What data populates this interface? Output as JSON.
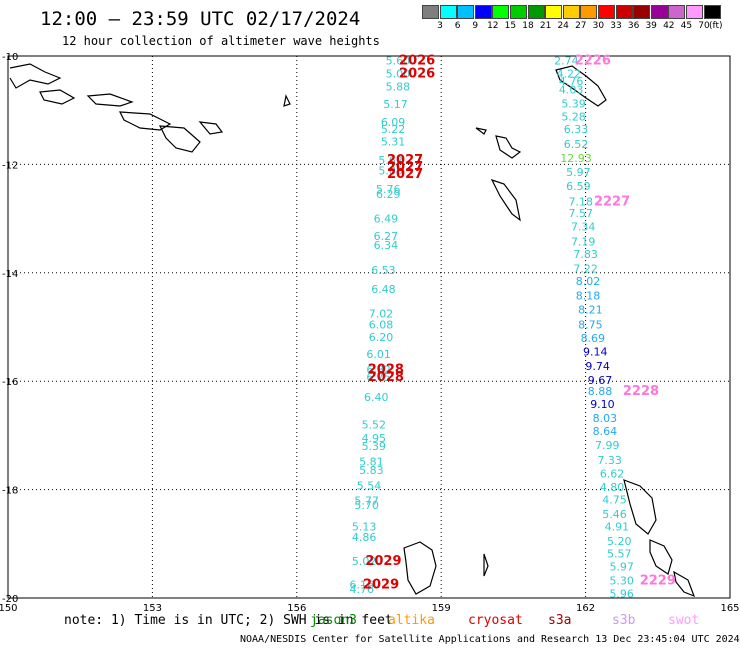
{
  "header": {
    "title": "12:00 – 23:59 UTC 02/17/2024",
    "subtitle": "12 hour collection of altimeter wave heights"
  },
  "colorbar": {
    "unit": "(ft)",
    "bins": [
      {
        "label": "3",
        "color": "#7f7f7f"
      },
      {
        "label": "6",
        "color": "#00ffff"
      },
      {
        "label": "9",
        "color": "#00bfff"
      },
      {
        "label": "12",
        "color": "#0000ff"
      },
      {
        "label": "15",
        "color": "#00ff00"
      },
      {
        "label": "18",
        "color": "#00cc00"
      },
      {
        "label": "21",
        "color": "#009900"
      },
      {
        "label": "24",
        "color": "#ffff00"
      },
      {
        "label": "27",
        "color": "#ffcc00"
      },
      {
        "label": "30",
        "color": "#ff9900"
      },
      {
        "label": "33",
        "color": "#ff0000"
      },
      {
        "label": "36",
        "color": "#cc0000"
      },
      {
        "label": "39",
        "color": "#990000"
      },
      {
        "label": "42",
        "color": "#990099"
      },
      {
        "label": "45",
        "color": "#cc66cc"
      },
      {
        "label": "70",
        "color": "#ff99ff"
      },
      {
        "label": "",
        "color": "#000000"
      }
    ]
  },
  "axes": {
    "lon_ticks": [
      "150",
      "153",
      "156",
      "159",
      "162",
      "165"
    ],
    "lat_ticks": [
      "-10",
      "-12",
      "-14",
      "-16",
      "-18",
      "-20"
    ],
    "lon_range": [
      150,
      165
    ],
    "lat_range": [
      -10,
      -20
    ]
  },
  "colors": {
    "low": "#33cccc",
    "mid": "#22aaee",
    "high": "#0000cc",
    "pass_red": "#dd0000",
    "pass_pink": "#ff77dd",
    "green": "#66dd33"
  },
  "track_a": [
    {
      "lon": 158.1,
      "lat": -10.08,
      "v": "5.60",
      "c": "low"
    },
    {
      "lon": 158.1,
      "lat": -10.32,
      "v": "5.00",
      "c": "low"
    },
    {
      "lon": 158.1,
      "lat": -10.56,
      "v": "5.88",
      "c": "low"
    },
    {
      "lon": 158.05,
      "lat": -10.89,
      "v": "5.17",
      "c": "low"
    },
    {
      "lon": 158.0,
      "lat": -11.22,
      "v": "6.09",
      "c": "low"
    },
    {
      "lon": 158.0,
      "lat": -11.35,
      "v": "5.22",
      "c": "low"
    },
    {
      "lon": 158.0,
      "lat": -11.58,
      "v": "5.31",
      "c": "low"
    },
    {
      "lon": 157.95,
      "lat": -11.92,
      "v": "5.62",
      "c": "low"
    },
    {
      "lon": 157.95,
      "lat": -12.11,
      "v": "5.86",
      "c": "low"
    },
    {
      "lon": 157.9,
      "lat": -12.45,
      "v": "5.76",
      "c": "low"
    },
    {
      "lon": 157.9,
      "lat": -12.55,
      "v": "6.29",
      "c": "low"
    },
    {
      "lon": 157.85,
      "lat": -13.0,
      "v": "6.49",
      "c": "low"
    },
    {
      "lon": 157.85,
      "lat": -13.32,
      "v": "6.27",
      "c": "low"
    },
    {
      "lon": 157.85,
      "lat": -13.49,
      "v": "6.34",
      "c": "low"
    },
    {
      "lon": 157.8,
      "lat": -13.95,
      "v": "6.53",
      "c": "low"
    },
    {
      "lon": 157.8,
      "lat": -14.3,
      "v": "6.48",
      "c": "low"
    },
    {
      "lon": 157.75,
      "lat": -14.75,
      "v": "7.02",
      "c": "low"
    },
    {
      "lon": 157.75,
      "lat": -14.95,
      "v": "6.08",
      "c": "low"
    },
    {
      "lon": 157.75,
      "lat": -15.18,
      "v": "6.20",
      "c": "low"
    },
    {
      "lon": 157.7,
      "lat": -15.5,
      "v": "6.01",
      "c": "low"
    },
    {
      "lon": 157.7,
      "lat": -15.78,
      "v": "6.82",
      "c": "low"
    },
    {
      "lon": 157.7,
      "lat": -15.92,
      "v": "6.75",
      "c": "low"
    },
    {
      "lon": 157.65,
      "lat": -16.29,
      "v": "6.40",
      "c": "low"
    },
    {
      "lon": 157.6,
      "lat": -16.8,
      "v": "5.52",
      "c": "low"
    },
    {
      "lon": 157.6,
      "lat": -17.05,
      "v": "4.95",
      "c": "low"
    },
    {
      "lon": 157.6,
      "lat": -17.2,
      "v": "5.39",
      "c": "low"
    },
    {
      "lon": 157.55,
      "lat": -17.48,
      "v": "5.81",
      "c": "low"
    },
    {
      "lon": 157.55,
      "lat": -17.64,
      "v": "5.83",
      "c": "low"
    },
    {
      "lon": 157.5,
      "lat": -17.92,
      "v": "5.54",
      "c": "low"
    },
    {
      "lon": 157.45,
      "lat": -18.2,
      "v": "5.77",
      "c": "low"
    },
    {
      "lon": 157.45,
      "lat": -18.28,
      "v": "5.70",
      "c": "low"
    },
    {
      "lon": 157.4,
      "lat": -18.68,
      "v": "5.13",
      "c": "low"
    },
    {
      "lon": 157.4,
      "lat": -18.87,
      "v": "4.86",
      "c": "low"
    },
    {
      "lon": 157.4,
      "lat": -19.32,
      "v": "5.02",
      "c": "low"
    },
    {
      "lon": 157.35,
      "lat": -19.75,
      "v": "6.16",
      "c": "low"
    },
    {
      "lon": 157.35,
      "lat": -19.83,
      "v": "4.76",
      "c": "low"
    }
  ],
  "track_a_passes": [
    {
      "lon": 158.5,
      "lat": -10.08,
      "v": "2026",
      "c": "pass_red"
    },
    {
      "lon": 158.5,
      "lat": -10.32,
      "v": "2026",
      "c": "pass_red"
    },
    {
      "lon": 158.25,
      "lat": -11.92,
      "v": "2027",
      "c": "pass_red"
    },
    {
      "lon": 158.25,
      "lat": -12.05,
      "v": "2027",
      "c": "pass_red"
    },
    {
      "lon": 158.25,
      "lat": -12.18,
      "v": "2027",
      "c": "pass_red"
    },
    {
      "lon": 157.85,
      "lat": -15.78,
      "v": "2028",
      "c": "pass_red"
    },
    {
      "lon": 157.85,
      "lat": -15.92,
      "v": "2028",
      "c": "pass_red"
    },
    {
      "lon": 157.8,
      "lat": -19.32,
      "v": "2029",
      "c": "pass_red"
    },
    {
      "lon": 157.75,
      "lat": -19.75,
      "v": "2029",
      "c": "pass_red"
    }
  ],
  "track_b": [
    {
      "lon": 161.6,
      "lat": -10.08,
      "v": "2.74",
      "c": "low"
    },
    {
      "lon": 161.65,
      "lat": -10.32,
      "v": "4.22",
      "c": "low"
    },
    {
      "lon": 161.7,
      "lat": -10.46,
      "v": "4.76",
      "c": "low"
    },
    {
      "lon": 161.7,
      "lat": -10.62,
      "v": "4.03",
      "c": "low"
    },
    {
      "lon": 161.75,
      "lat": -10.88,
      "v": "5.39",
      "c": "low"
    },
    {
      "lon": 161.75,
      "lat": -11.12,
      "v": "5.28",
      "c": "low"
    },
    {
      "lon": 161.8,
      "lat": -11.35,
      "v": "6.33",
      "c": "low"
    },
    {
      "lon": 161.8,
      "lat": -11.62,
      "v": "6.52",
      "c": "low"
    },
    {
      "lon": 161.8,
      "lat": -11.88,
      "v": "12.93",
      "c": "green"
    },
    {
      "lon": 161.85,
      "lat": -12.14,
      "v": "5.97",
      "c": "low"
    },
    {
      "lon": 161.85,
      "lat": -12.4,
      "v": "6.59",
      "c": "low"
    },
    {
      "lon": 161.9,
      "lat": -12.68,
      "v": "7.18",
      "c": "low"
    },
    {
      "lon": 161.9,
      "lat": -12.9,
      "v": "7.57",
      "c": "low"
    },
    {
      "lon": 161.95,
      "lat": -13.15,
      "v": "7.34",
      "c": "low"
    },
    {
      "lon": 161.95,
      "lat": -13.42,
      "v": "7.19",
      "c": "low"
    },
    {
      "lon": 162.0,
      "lat": -13.65,
      "v": "7.83",
      "c": "low"
    },
    {
      "lon": 162.0,
      "lat": -13.92,
      "v": "7.22",
      "c": "low"
    },
    {
      "lon": 162.05,
      "lat": -14.15,
      "v": "8.02",
      "c": "mid"
    },
    {
      "lon": 162.05,
      "lat": -14.42,
      "v": "8.18",
      "c": "mid"
    },
    {
      "lon": 162.1,
      "lat": -14.68,
      "v": "8.21",
      "c": "mid"
    },
    {
      "lon": 162.1,
      "lat": -14.95,
      "v": "8.75",
      "c": "mid"
    },
    {
      "lon": 162.15,
      "lat": -15.2,
      "v": "8.69",
      "c": "mid"
    },
    {
      "lon": 162.2,
      "lat": -15.45,
      "v": "9.14",
      "c": "high"
    },
    {
      "lon": 162.25,
      "lat": -15.72,
      "v": "9.74",
      "c": "high"
    },
    {
      "lon": 162.3,
      "lat": -15.98,
      "v": "9.67",
      "c": "high"
    },
    {
      "lon": 162.3,
      "lat": -16.18,
      "v": "8.88",
      "c": "mid"
    },
    {
      "lon": 162.35,
      "lat": -16.42,
      "v": "9.10",
      "c": "high"
    },
    {
      "lon": 162.4,
      "lat": -16.68,
      "v": "8.03",
      "c": "mid"
    },
    {
      "lon": 162.4,
      "lat": -16.92,
      "v": "8.64",
      "c": "mid"
    },
    {
      "lon": 162.45,
      "lat": -17.18,
      "v": "7.99",
      "c": "low"
    },
    {
      "lon": 162.5,
      "lat": -17.45,
      "v": "7.33",
      "c": "low"
    },
    {
      "lon": 162.55,
      "lat": -17.7,
      "v": "6.62",
      "c": "low"
    },
    {
      "lon": 162.55,
      "lat": -17.95,
      "v": "4.80",
      "c": "low"
    },
    {
      "lon": 162.6,
      "lat": -18.18,
      "v": "4.75",
      "c": "low"
    },
    {
      "lon": 162.6,
      "lat": -18.45,
      "v": "5.46",
      "c": "low"
    },
    {
      "lon": 162.65,
      "lat": -18.68,
      "v": "4.91",
      "c": "low"
    },
    {
      "lon": 162.7,
      "lat": -18.95,
      "v": "5.20",
      "c": "low"
    },
    {
      "lon": 162.7,
      "lat": -19.18,
      "v": "5.57",
      "c": "low"
    },
    {
      "lon": 162.75,
      "lat": -19.42,
      "v": "5.97",
      "c": "low"
    },
    {
      "lon": 162.75,
      "lat": -19.68,
      "v": "5.30",
      "c": "low"
    },
    {
      "lon": 162.75,
      "lat": -19.92,
      "v": "5.96",
      "c": "low"
    }
  ],
  "track_b_passes": [
    {
      "lon": 162.15,
      "lat": -10.08,
      "v": "2226",
      "c": "pass_pink"
    },
    {
      "lon": 162.55,
      "lat": -12.68,
      "v": "2227",
      "c": "pass_pink"
    },
    {
      "lon": 163.15,
      "lat": -16.18,
      "v": "2228",
      "c": "pass_pink"
    },
    {
      "lon": 163.5,
      "lat": -19.68,
      "v": "2229",
      "c": "pass_pink"
    }
  ],
  "footer": {
    "note": "note: 1) Time is in UTC; 2) SWH is in feet",
    "satellites": [
      {
        "name": "jason3",
        "color": "#008800"
      },
      {
        "name": "altika",
        "color": "#ff9900"
      },
      {
        "name": "cryosat",
        "color": "#dd0000"
      },
      {
        "name": "s3a",
        "color": "#990000"
      },
      {
        "name": "s3b",
        "color": "#cc99ee"
      },
      {
        "name": "swot",
        "color": "#ff99ff"
      }
    ],
    "credit": "NOAA/NESDIS Center for Satellite Applications and Research   13 Dec 23:45:04 UTC 2024"
  }
}
